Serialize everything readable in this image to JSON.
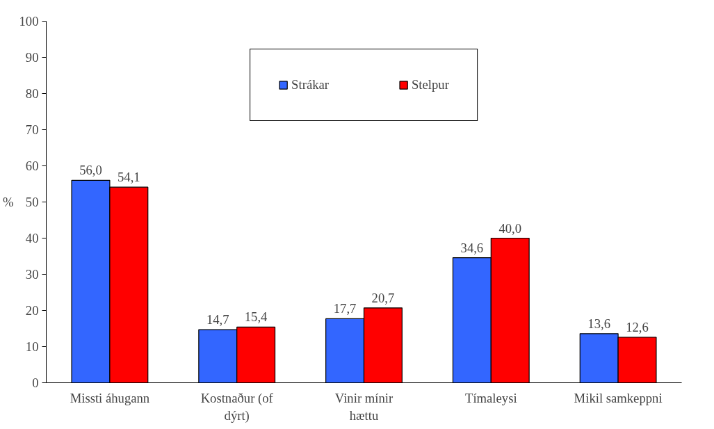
{
  "chart_data": {
    "type": "bar",
    "ylabel": "%",
    "categories": [
      "Missti áhugann",
      "Kostnaður (of dýrt)",
      "Vinir mínir hættu",
      "Tímaleysi",
      "Mikil samkeppni"
    ],
    "series": [
      {
        "name": "Strákar",
        "color": "#3366ff",
        "values": [
          56.0,
          14.7,
          17.7,
          34.6,
          13.6
        ],
        "value_labels": [
          "56,0",
          "14,7",
          "17,7",
          "34,6",
          "13,6"
        ]
      },
      {
        "name": "Stelpur",
        "color": "#ff0000",
        "values": [
          54.1,
          15.4,
          20.7,
          40.0,
          12.6
        ],
        "value_labels": [
          "54,1",
          "15,4",
          "20,7",
          "40,0",
          "12,6"
        ]
      }
    ],
    "ylim": [
      0,
      100
    ],
    "yticks": [
      0,
      10,
      20,
      30,
      40,
      50,
      60,
      70,
      80,
      90,
      100
    ],
    "grid": false,
    "legend": "top"
  }
}
